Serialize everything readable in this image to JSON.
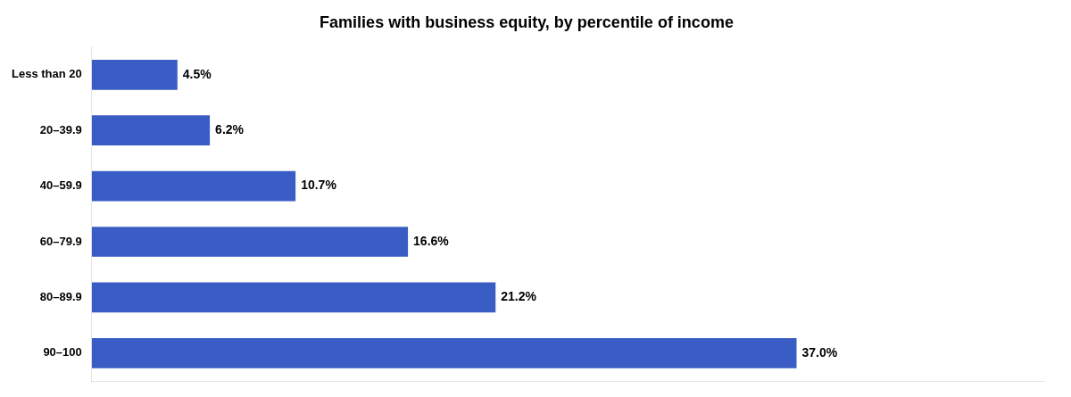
{
  "chart_data": {
    "type": "bar",
    "orientation": "horizontal",
    "title": "Families with business equity, by percentile of income",
    "categories": [
      "Less than 20",
      "20–39.9",
      "40–59.9",
      "60–79.9",
      "80–89.9",
      "90–100"
    ],
    "values": [
      4.5,
      6.2,
      10.7,
      16.6,
      21.2,
      37.0
    ],
    "value_labels": [
      "4.5%",
      "6.2%",
      "10.7%",
      "16.6%",
      "21.2%",
      "37.0%"
    ],
    "color": "#3A5CC5",
    "xlim": [
      0,
      50
    ],
    "grid": false,
    "data_labels": true,
    "tick_labels": "y"
  }
}
